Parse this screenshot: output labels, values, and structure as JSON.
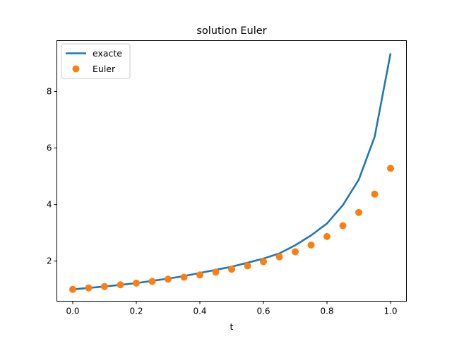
{
  "chart_data": {
    "type": "line",
    "title": "solution Euler",
    "xlabel": "t",
    "ylabel": "",
    "xlim": [
      -0.05,
      1.05
    ],
    "ylim": [
      0.58,
      9.8
    ],
    "xticks": [
      0.0,
      0.2,
      0.4,
      0.6,
      0.8,
      1.0
    ],
    "xtick_labels": [
      "0.0",
      "0.2",
      "0.4",
      "0.6",
      "0.8",
      "1.0"
    ],
    "yticks": [
      2,
      4,
      6,
      8
    ],
    "ytick_labels": [
      "2",
      "4",
      "6",
      "8"
    ],
    "grid": false,
    "legend_position": "top-left",
    "series": [
      {
        "name": "exacte",
        "style": "line",
        "color": "#1f77b4",
        "x": [
          0.0,
          0.05,
          0.1,
          0.15,
          0.2,
          0.25,
          0.3,
          0.35,
          0.4,
          0.45,
          0.5,
          0.55,
          0.6,
          0.65,
          0.7,
          0.75,
          0.8,
          0.85,
          0.9,
          0.95,
          1.0
        ],
        "y": [
          1.0,
          1.05,
          1.1,
          1.16,
          1.22,
          1.3,
          1.38,
          1.47,
          1.58,
          1.69,
          1.8,
          1.94,
          2.09,
          2.27,
          2.56,
          2.91,
          3.33,
          3.98,
          4.88,
          6.4,
          9.35
        ]
      },
      {
        "name": "Euler",
        "style": "scatter",
        "color": "#ff7f0e",
        "x": [
          0.0,
          0.05,
          0.1,
          0.15,
          0.2,
          0.25,
          0.3,
          0.35,
          0.4,
          0.45,
          0.5,
          0.55,
          0.6,
          0.65,
          0.7,
          0.75,
          0.8,
          0.85,
          0.9,
          0.95,
          1.0
        ],
        "y": [
          1.0,
          1.05,
          1.1,
          1.16,
          1.22,
          1.28,
          1.36,
          1.43,
          1.51,
          1.61,
          1.71,
          1.83,
          1.98,
          2.15,
          2.33,
          2.57,
          2.87,
          3.25,
          3.72,
          4.37,
          5.28
        ]
      }
    ]
  }
}
